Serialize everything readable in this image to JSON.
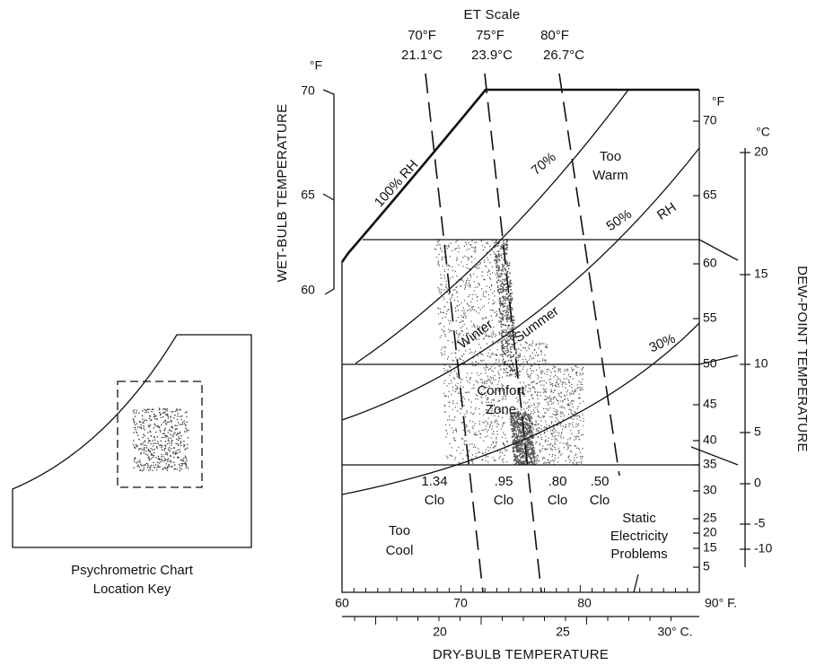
{
  "title": "ET Scale",
  "et_lines": [
    {
      "f": "70°F",
      "c": "21.1°C"
    },
    {
      "f": "75°F",
      "c": "23.9°C"
    },
    {
      "f": "80°F",
      "c": "26.7°C"
    }
  ],
  "wet_bulb": {
    "label": "WET-BULB TEMPERATURE",
    "unit": "°F",
    "ticks": [
      "70",
      "65",
      "60"
    ]
  },
  "dew_point": {
    "label": "DEW-POINT TEMPERATURE",
    "unit_f": "°F",
    "ticks_f": [
      "70",
      "65",
      "60",
      "55",
      "50",
      "45",
      "40",
      "35",
      "30",
      "25",
      "20",
      "15",
      "5"
    ],
    "unit_c": "°C",
    "ticks_c": [
      "20",
      "15",
      "10",
      "5",
      "0",
      "-5",
      "-10"
    ]
  },
  "dry_bulb": {
    "label": "DRY-BULB TEMPERATURE",
    "ticks_f": [
      "60",
      "70",
      "80",
      "90° F."
    ],
    "ticks_c": [
      "20",
      "25",
      "30° C."
    ]
  },
  "rh_labels": {
    "rh100": "100% RH",
    "rh70": "70%",
    "rh50": "50%",
    "rh": "RH",
    "rh30": "30%"
  },
  "zones": {
    "too_warm": [
      "Too",
      "Warm"
    ],
    "too_cool": [
      "Too",
      "Cool"
    ],
    "winter": "Winter",
    "summer": "Summer",
    "comfort": [
      "Comfort",
      "Zone"
    ],
    "static": [
      "Static",
      "Electricity",
      "Problems"
    ]
  },
  "clo": [
    {
      "value": "1.34",
      "unit": "Clo"
    },
    {
      "value": ".95",
      "unit": "Clo"
    },
    {
      "value": ".80",
      "unit": "Clo"
    },
    {
      "value": ".50",
      "unit": "Clo"
    }
  ],
  "key": {
    "title": [
      "Psychrometric Chart",
      "Location Key"
    ]
  }
}
